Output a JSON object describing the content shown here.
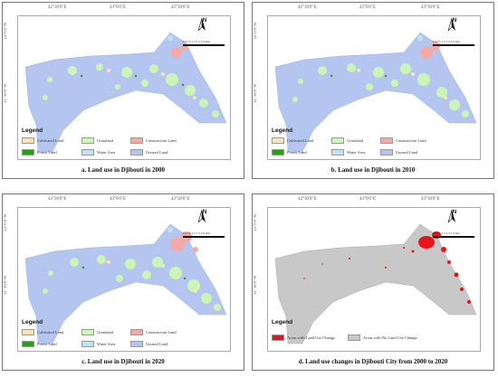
{
  "coordinates": {
    "top": [
      "42°30'0\"E",
      "43°0'0\"E",
      "43°30'0\"E"
    ],
    "left_upper": "12°0'0\"N",
    "left_lower": "11°30'0\"N"
  },
  "north_label": "N",
  "scale_label": "0 0.75 1.5 3 4.5 6 Km",
  "legend_title": "Legend",
  "land_use_legend": [
    {
      "label": "Cultivated Land",
      "color": "#fbe3b8"
    },
    {
      "label": "Grassland",
      "color": "#cff7b5"
    },
    {
      "label": "Construction Land",
      "color": "#f5a9a9"
    },
    {
      "label": "Forest Land",
      "color": "#2f9a1c"
    },
    {
      "label": "Water Area",
      "color": "#bfe3f5"
    },
    {
      "label": "Unused Land",
      "color": "#b4c6f0"
    }
  ],
  "change_legend": [
    {
      "label": "Areas with Land Use Change",
      "color": "#e8141a"
    },
    {
      "label": "Areas with No Land Use Change",
      "color": "#c8c8c8"
    }
  ],
  "panels": [
    {
      "id": "a",
      "caption": "a. Land use in Djibouti in 2000",
      "type": "landuse"
    },
    {
      "id": "b",
      "caption": "b. Land use in Djibouti in 2010",
      "type": "landuse"
    },
    {
      "id": "c",
      "caption": "c. Land use in Djibouti in 2020",
      "type": "landuse"
    },
    {
      "id": "d",
      "caption": "d. Land use changes in Djibouti City from 2000 to 2020",
      "type": "change"
    }
  ]
}
